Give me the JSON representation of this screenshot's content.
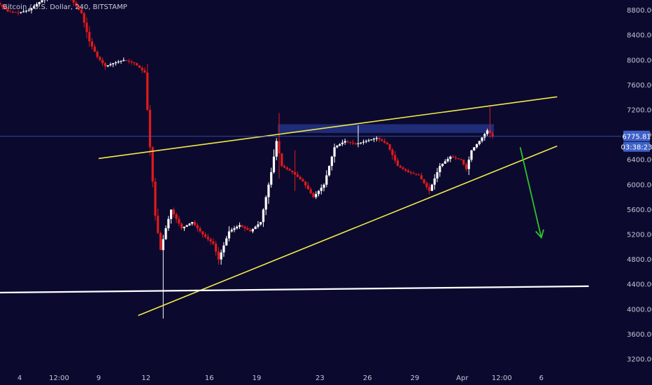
{
  "header": {
    "symbol_title": "Bitcoin / U.S. Dollar, 240, BITSTAMP"
  },
  "price_badge": {
    "price_label": "6775.81",
    "countdown_label": "03:38:23",
    "price_color": "#3e61c9"
  },
  "chart_data": {
    "type": "candlestick",
    "interval": "240",
    "exchange": "BITSTAMP",
    "ylim": [
      3000,
      8950
    ],
    "y_ticks": [
      {
        "value": 3200,
        "label": "3200.00"
      },
      {
        "value": 3600,
        "label": "3600.00"
      },
      {
        "value": 4000,
        "label": "4000.00"
      },
      {
        "value": 4400,
        "label": "4400.00"
      },
      {
        "value": 4800,
        "label": "4800.00"
      },
      {
        "value": 5200,
        "label": "5200.00"
      },
      {
        "value": 5600,
        "label": "5600.00"
      },
      {
        "value": 6000,
        "label": "6000.00"
      },
      {
        "value": 6400,
        "label": "6400.00"
      },
      {
        "value": 6800,
        "label": "6800.00"
      },
      {
        "value": 7200,
        "label": "7200.00"
      },
      {
        "value": 7600,
        "label": "7600.00"
      },
      {
        "value": 8000,
        "label": "8000.00"
      },
      {
        "value": 8400,
        "label": "8400.00"
      },
      {
        "value": 8800,
        "label": "8800.00"
      }
    ],
    "x_ticks": [
      {
        "date": "2020-03-04T00:00",
        "label": "4"
      },
      {
        "date": "2020-03-06T12:00",
        "label": "12:00"
      },
      {
        "date": "2020-03-09T00:00",
        "label": "9"
      },
      {
        "date": "2020-03-12T00:00",
        "label": "12"
      },
      {
        "date": "2020-03-16T00:00",
        "label": "16"
      },
      {
        "date": "2020-03-19T00:00",
        "label": "19"
      },
      {
        "date": "2020-03-23T00:00",
        "label": "23"
      },
      {
        "date": "2020-03-26T00:00",
        "label": "26"
      },
      {
        "date": "2020-03-29T00:00",
        "label": "29"
      },
      {
        "date": "2020-04-01T00:00",
        "label": "Apr"
      },
      {
        "date": "2020-04-03T12:00",
        "label": "12:00"
      },
      {
        "date": "2020-04-06T00:00",
        "label": "6"
      }
    ],
    "candle_path": [
      [
        "2020-03-02T00:00",
        8840
      ],
      [
        "2020-03-02T16:00",
        8920
      ],
      [
        "2020-03-03T08:00",
        8780
      ],
      [
        "2020-03-04T00:00",
        8760
      ],
      [
        "2020-03-04T16:00",
        8800
      ],
      [
        "2020-03-05T08:00",
        8930
      ],
      [
        "2020-03-06T00:00",
        9050
      ],
      [
        "2020-03-06T16:00",
        9080
      ],
      [
        "2020-03-07T08:00",
        8980
      ],
      [
        "2020-03-08T00:00",
        8750
      ],
      [
        "2020-03-08T12:00",
        8300
      ],
      [
        "2020-03-09T00:00",
        8050
      ],
      [
        "2020-03-09T12:00",
        7900
      ],
      [
        "2020-03-10T00:00",
        7950
      ],
      [
        "2020-03-10T16:00",
        8000
      ],
      [
        "2020-03-11T08:00",
        7950
      ],
      [
        "2020-03-12T00:00",
        7800
      ],
      [
        "2020-03-12T08:00",
        6600
      ],
      [
        "2020-03-12T16:00",
        5500
      ],
      [
        "2020-03-13T00:00",
        4950
      ],
      [
        "2020-03-13T08:00",
        5300
      ],
      [
        "2020-03-13T16:00",
        5600
      ],
      [
        "2020-03-14T08:00",
        5300
      ],
      [
        "2020-03-15T00:00",
        5400
      ],
      [
        "2020-03-15T16:00",
        5200
      ],
      [
        "2020-03-16T08:00",
        5050
      ],
      [
        "2020-03-16T16:00",
        4800
      ],
      [
        "2020-03-17T08:00",
        5250
      ],
      [
        "2020-03-18T00:00",
        5350
      ],
      [
        "2020-03-18T16:00",
        5250
      ],
      [
        "2020-03-19T08:00",
        5400
      ],
      [
        "2020-03-20T00:00",
        6200
      ],
      [
        "2020-03-20T08:00",
        6700
      ],
      [
        "2020-03-20T16:00",
        6300
      ],
      [
        "2020-03-21T08:00",
        6200
      ],
      [
        "2020-03-22T00:00",
        6050
      ],
      [
        "2020-03-22T16:00",
        5800
      ],
      [
        "2020-03-23T08:00",
        6000
      ],
      [
        "2020-03-24T00:00",
        6600
      ],
      [
        "2020-03-24T16:00",
        6700
      ],
      [
        "2020-03-25T08:00",
        6650
      ],
      [
        "2020-03-26T00:00",
        6700
      ],
      [
        "2020-03-26T16:00",
        6750
      ],
      [
        "2020-03-27T08:00",
        6650
      ],
      [
        "2020-03-28T00:00",
        6300
      ],
      [
        "2020-03-28T16:00",
        6200
      ],
      [
        "2020-03-29T08:00",
        6150
      ],
      [
        "2020-03-30T00:00",
        5900
      ],
      [
        "2020-03-30T16:00",
        6300
      ],
      [
        "2020-03-31T08:00",
        6450
      ],
      [
        "2020-04-01T00:00",
        6400
      ],
      [
        "2020-04-01T08:00",
        6250
      ],
      [
        "2020-04-01T16:00",
        6550
      ],
      [
        "2020-04-02T04:00",
        6700
      ],
      [
        "2020-04-02T16:00",
        6870
      ],
      [
        "2020-04-03T00:00",
        6780
      ]
    ],
    "candle_spikes": [
      {
        "date": "2020-03-13T00:00",
        "low": 3850,
        "high": 5000
      },
      {
        "date": "2020-03-20T08:00",
        "low": 6100,
        "high": 7150
      },
      {
        "date": "2020-03-21T08:00",
        "low": 5900,
        "high": 6550
      },
      {
        "date": "2020-03-25T08:00",
        "low": 6600,
        "high": 6950
      },
      {
        "date": "2020-04-02T16:00",
        "low": 6750,
        "high": 7250
      }
    ],
    "resistance_zone": {
      "from": "2020-03-20T08:00",
      "to": "2020-04-03T00:00",
      "low": 6830,
      "high": 6970
    },
    "current_price_line": 6775.81,
    "annotations": [
      {
        "type": "trendline",
        "name": "upper-channel",
        "color": "#f2e94a",
        "start": [
          "2020-03-09T00:00",
          6420
        ],
        "end": [
          "2020-04-07T00:00",
          7410
        ]
      },
      {
        "type": "trendline",
        "name": "lower-channel",
        "color": "#f2e94a",
        "start": [
          "2020-03-11T12:00",
          3900
        ],
        "end": [
          "2020-04-07T00:00",
          6620
        ]
      },
      {
        "type": "horizontal",
        "name": "support",
        "color": "#ffffff",
        "start": [
          "2020-02-29T00:00",
          4260
        ],
        "end": [
          "2020-04-09T00:00",
          4370
        ]
      },
      {
        "type": "arrow",
        "name": "projection",
        "color": "#34c22b",
        "start": [
          "2020-04-04T16:00",
          6600
        ],
        "end": [
          "2020-04-06T00:00",
          5150
        ]
      }
    ],
    "colors": {
      "background": "#0b0a2e",
      "candle_up": "#ffffff",
      "candle_down": "#e21a1a",
      "zone": "#3248b4",
      "price_line": "#3e61c9"
    }
  }
}
